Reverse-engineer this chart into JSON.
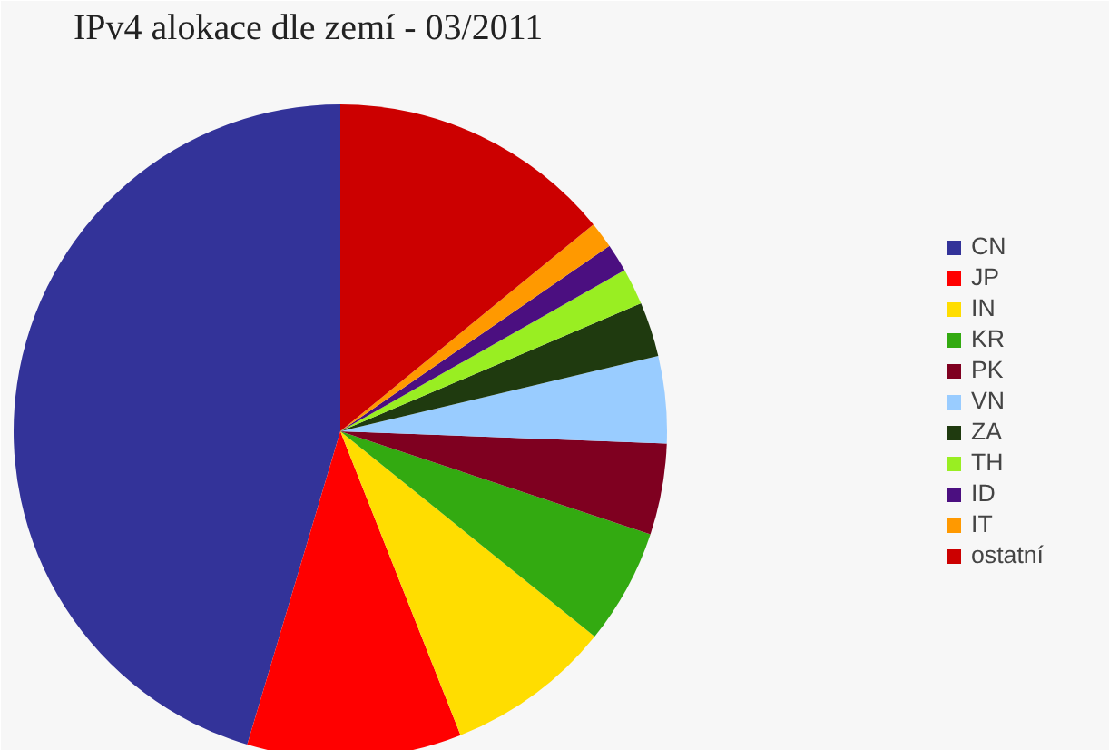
{
  "chart_data": {
    "type": "pie",
    "title": "IPv4 alokace dle zemí - 03/2011",
    "categories": [
      "CN",
      "JP",
      "IN",
      "KR",
      "PK",
      "VN",
      "ZA",
      "TH",
      "ID",
      "IT",
      "ostatní"
    ],
    "values": [
      45.4,
      10.6,
      8.2,
      5.7,
      4.5,
      4.3,
      2.7,
      1.8,
      1.4,
      1.3,
      14.1
    ],
    "colors": [
      "#333399",
      "#ff0000",
      "#ffdd00",
      "#33aa11",
      "#7f0020",
      "#99ccff",
      "#1f3a0f",
      "#99ee22",
      "#4b0f80",
      "#ff9900",
      "#cc0000"
    ],
    "legend": "right"
  }
}
